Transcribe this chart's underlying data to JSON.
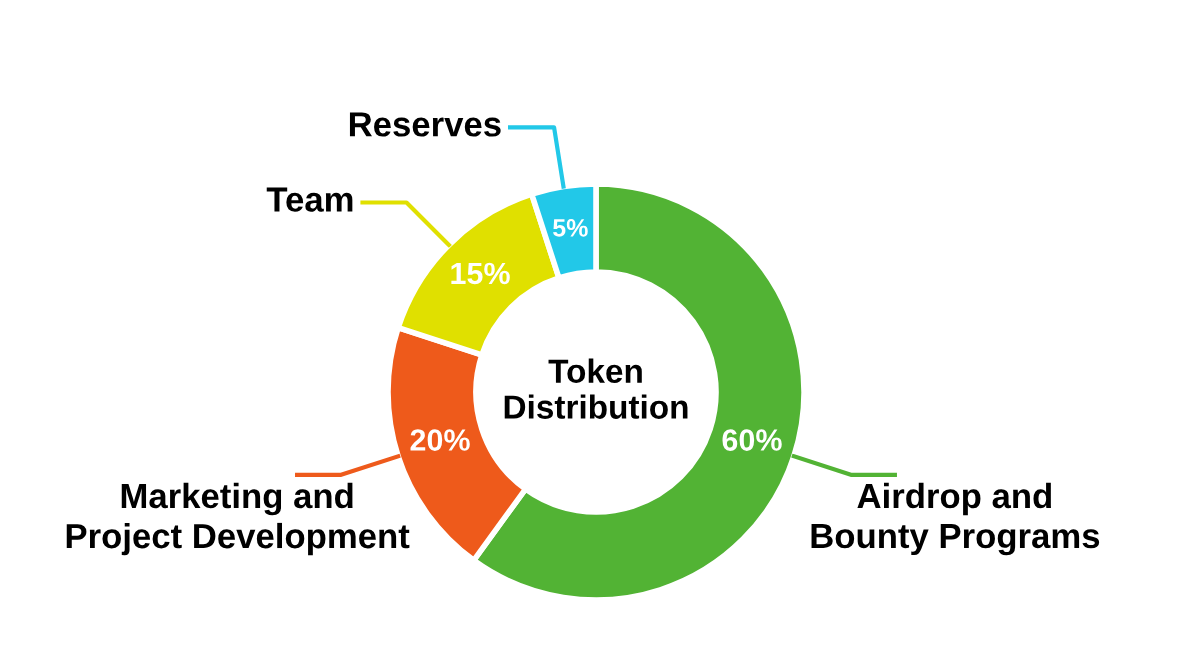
{
  "chart_data": {
    "type": "donut",
    "title": "Token\nDistribution",
    "categories": [
      "Airdrop and\nBounty Programs",
      "Marketing and\nProject Development",
      "Team",
      "Reserves"
    ],
    "values": [
      60,
      20,
      15,
      5
    ],
    "colors": [
      "#52b334",
      "#ee5a1b",
      "#e0e000",
      "#22c8e8"
    ],
    "value_labels": [
      "60%",
      "20%",
      "15%",
      "5%"
    ]
  }
}
